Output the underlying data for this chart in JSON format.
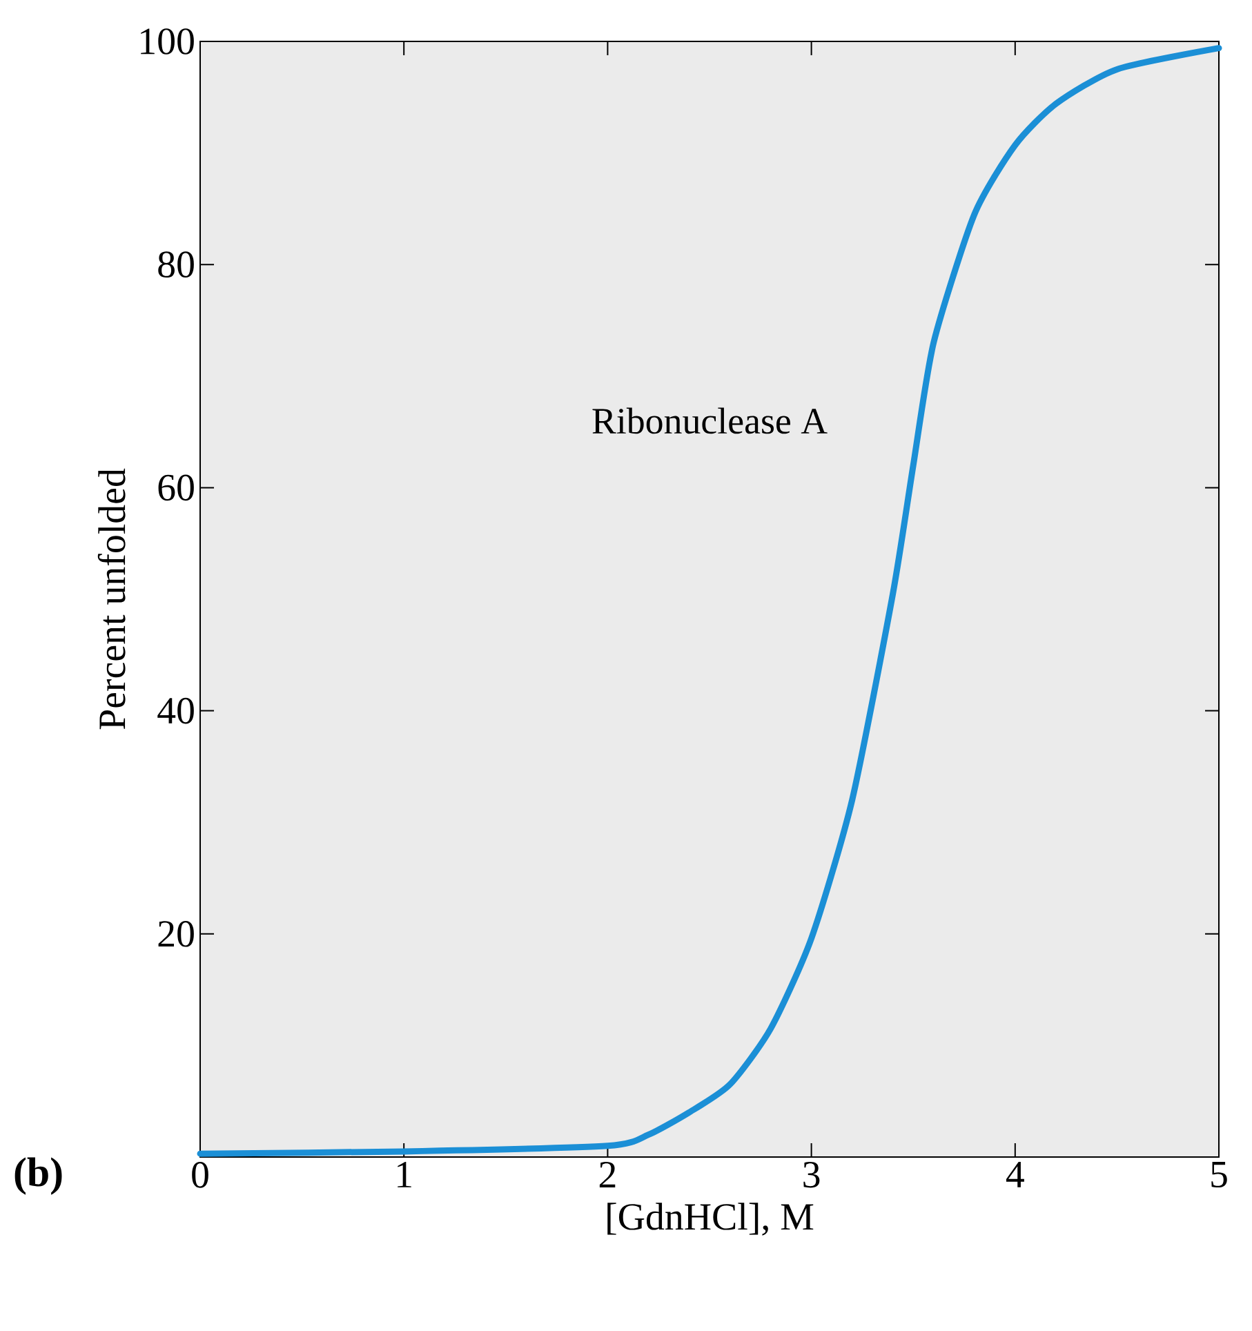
{
  "chart_data": {
    "type": "line",
    "xlabel": "[GdnHCl], M",
    "ylabel": "Percent unfolded",
    "annotations": [
      "(b)"
    ],
    "x": [
      0,
      1,
      2,
      2.2,
      2.4,
      2.6,
      2.8,
      3.0,
      3.2,
      3.4,
      3.5,
      3.6,
      3.8,
      4.0,
      4.2,
      4.5,
      5
    ],
    "series": [
      {
        "name": "Ribonuclease A",
        "color": "#1b8fd6",
        "values": [
          0.3,
          0.5,
          1,
          2,
          4,
          6.5,
          11.5,
          19.6,
          32,
          50.5,
          62,
          73,
          84.5,
          90.7,
          94.4,
          97.5,
          99.4
        ]
      }
    ],
    "xlim": [
      0,
      5
    ],
    "ylim": [
      0,
      100
    ],
    "xticks": [
      0,
      1,
      2,
      3,
      4,
      5
    ],
    "yticks": [
      20,
      40,
      60,
      80,
      100
    ],
    "grid": false,
    "marker": "none",
    "line_style": "solid"
  }
}
